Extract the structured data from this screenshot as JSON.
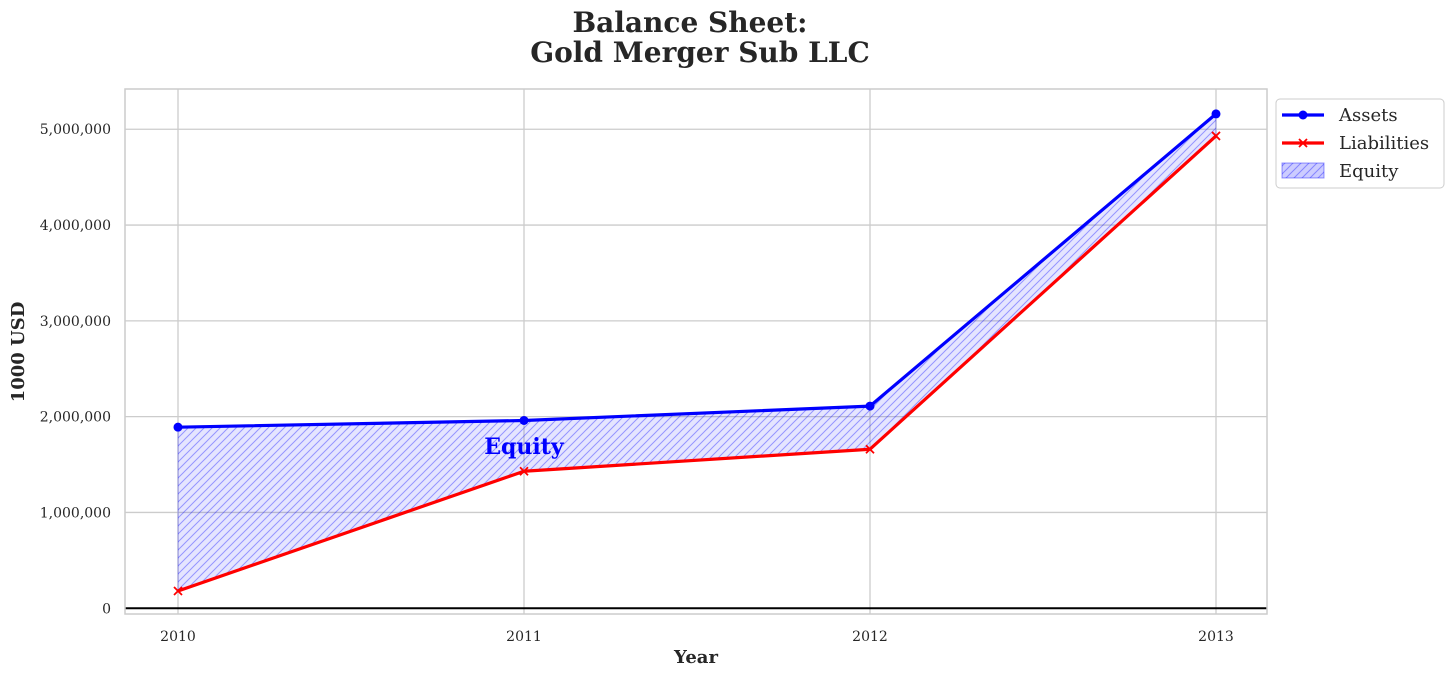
{
  "chart_data": {
    "type": "line",
    "title_lines": [
      "Balance Sheet:",
      "Gold Merger Sub LLC"
    ],
    "xlabel": "Year",
    "ylabel": "1000 USD",
    "x": [
      "2010",
      "2011",
      "2012",
      "2013"
    ],
    "x_ticks": [
      "2010",
      "2011",
      "2012",
      "2013"
    ],
    "y_ticks": [
      0,
      1000000,
      2000000,
      3000000,
      4000000,
      5000000
    ],
    "y_tick_labels": [
      "0",
      "1,000,000",
      "2,000,000",
      "3,000,000",
      "4,000,000",
      "5,000,000"
    ],
    "ylim": [
      -60000,
      5420000
    ],
    "grid": true,
    "legend_position": "upper-right-outside",
    "series": [
      {
        "name": "Assets",
        "values": [
          1890000,
          1960000,
          2110000,
          5160000
        ],
        "color": "#0000ff",
        "marker": "circle"
      },
      {
        "name": "Liabilities",
        "values": [
          180000,
          1430000,
          1660000,
          4930000
        ],
        "color": "#ff0000",
        "marker": "x"
      }
    ],
    "fill": {
      "name": "Equity",
      "between": [
        "Assets",
        "Liabilities"
      ],
      "color": "#0000ff",
      "hatch": "////"
    },
    "annotations": [
      {
        "text": "Equity",
        "x": "2011",
        "y": 1650000,
        "color": "#0000ff"
      }
    ]
  }
}
